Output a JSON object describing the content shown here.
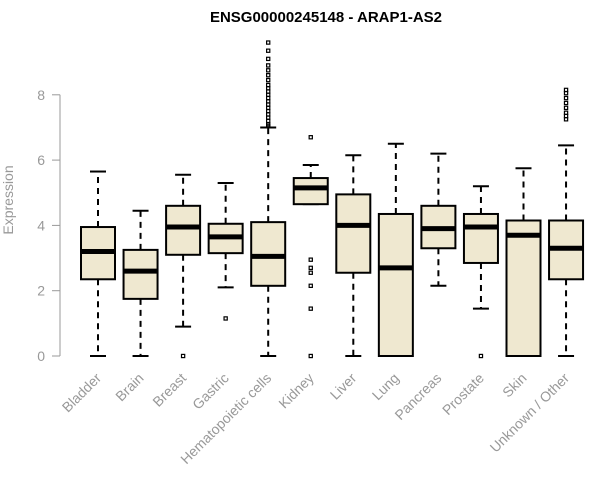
{
  "chart_data": {
    "type": "boxplot",
    "title": "ENSG00000245148 - ARAP1-AS2",
    "xlabel": "",
    "ylabel": "Expression",
    "ylim": [
      0,
      9.6
    ],
    "yticks": [
      0,
      2,
      4,
      6,
      8
    ],
    "box_fill": "#EFE8D0",
    "categories": [
      "Bladder",
      "Brain",
      "Breast",
      "Gastric",
      "Hematopoietic cells",
      "Kidney",
      "Liver",
      "Lung",
      "Pancreas",
      "Prostate",
      "Skin",
      "Unknown / Other"
    ],
    "series": [
      {
        "name": "Bladder",
        "min": 0.0,
        "q1": 2.35,
        "median": 3.2,
        "q3": 3.95,
        "max": 5.65,
        "outliers": []
      },
      {
        "name": "Brain",
        "min": 0.0,
        "q1": 1.75,
        "median": 2.6,
        "q3": 3.25,
        "max": 4.45,
        "outliers": []
      },
      {
        "name": "Breast",
        "min": 0.9,
        "q1": 3.1,
        "median": 3.95,
        "q3": 4.6,
        "max": 5.55,
        "outliers": [
          0.0
        ]
      },
      {
        "name": "Gastric",
        "min": 2.1,
        "q1": 3.15,
        "median": 3.65,
        "q3": 4.05,
        "max": 5.3,
        "outliers": [
          1.15
        ]
      },
      {
        "name": "Hematopoietic cells",
        "min": 0.0,
        "q1": 2.15,
        "median": 3.05,
        "q3": 4.1,
        "max": 7.0,
        "outliers": [
          7.05,
          7.1,
          7.2,
          7.3,
          7.4,
          7.5,
          7.6,
          7.7,
          7.8,
          7.9,
          8.0,
          8.1,
          8.2,
          8.3,
          8.45,
          8.6,
          8.75,
          8.9,
          9.1,
          9.35,
          9.6
        ]
      },
      {
        "name": "Kidney",
        "min": 4.65,
        "q1": 4.65,
        "median": 5.15,
        "q3": 5.45,
        "max": 5.85,
        "outliers": [
          6.7,
          2.95,
          2.7,
          2.55,
          2.15,
          1.45,
          0.0
        ]
      },
      {
        "name": "Liver",
        "min": 0.0,
        "q1": 2.55,
        "median": 4.0,
        "q3": 4.95,
        "max": 6.15,
        "outliers": []
      },
      {
        "name": "Lung",
        "min": 0.0,
        "q1": 0.0,
        "median": 2.7,
        "q3": 4.35,
        "max": 6.5,
        "outliers": []
      },
      {
        "name": "Pancreas",
        "min": 2.15,
        "q1": 3.3,
        "median": 3.9,
        "q3": 4.6,
        "max": 6.2,
        "outliers": []
      },
      {
        "name": "Prostate",
        "min": 1.45,
        "q1": 2.85,
        "median": 3.95,
        "q3": 4.35,
        "max": 5.2,
        "outliers": [
          0.0
        ]
      },
      {
        "name": "Skin",
        "min": 0.0,
        "q1": 0.0,
        "median": 3.7,
        "q3": 4.15,
        "max": 5.75,
        "outliers": []
      },
      {
        "name": "Unknown / Other",
        "min": 0.0,
        "q1": 2.35,
        "median": 3.3,
        "q3": 4.15,
        "max": 6.45,
        "outliers": [
          7.25,
          7.35,
          7.45,
          7.6,
          7.75,
          7.9,
          8.05,
          8.15
        ]
      }
    ]
  }
}
